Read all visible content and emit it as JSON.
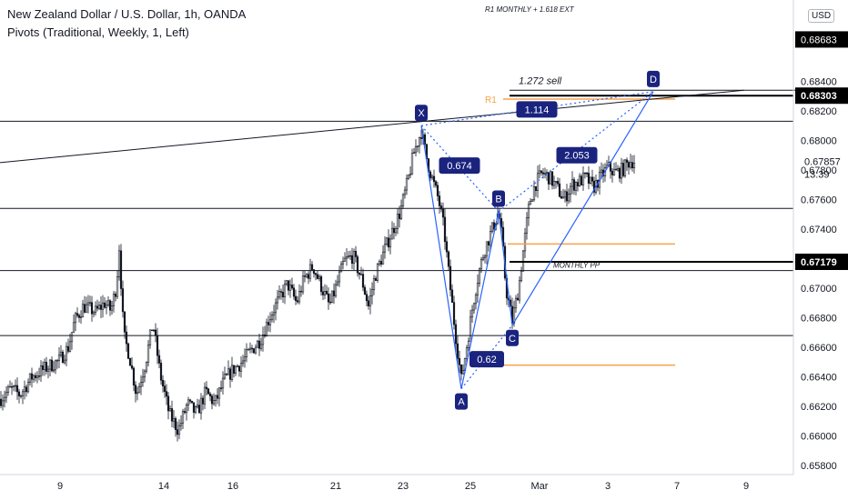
{
  "header": {
    "symbol_title": "New Zealand Dollar / U.S. Dollar, 1h, OANDA",
    "indicator": "Pivots (Traditional, Weekly, 1, Left)"
  },
  "currency_badge": "USD",
  "chart_data": {
    "type": "candlestick",
    "title": "New Zealand Dollar / U.S. Dollar, 1h, OANDA",
    "x_tick_labels": [
      {
        "label": "9",
        "x": 66
      },
      {
        "label": "14",
        "x": 180
      },
      {
        "label": "16",
        "x": 256
      },
      {
        "label": "21",
        "x": 369
      },
      {
        "label": "23",
        "x": 443
      },
      {
        "label": "25",
        "x": 517
      },
      {
        "label": "Mar",
        "x": 593
      },
      {
        "label": "3",
        "x": 668
      },
      {
        "label": "7",
        "x": 744
      },
      {
        "label": "9",
        "x": 820
      }
    ],
    "x_domain": [
      0,
      870
    ],
    "ylim": [
      0.6574,
      0.6895
    ],
    "y_ticks": [
      "0.65800",
      "0.66000",
      "0.66200",
      "0.66400",
      "0.66600",
      "0.66800",
      "0.67000",
      "0.67400",
      "0.67600",
      "0.67800",
      "0.68000",
      "0.68200",
      "0.68400"
    ],
    "price_tags": [
      {
        "label": "0.68303",
        "y": 0.68303
      },
      {
        "label": "0.67179",
        "y": 0.67179
      },
      {
        "label": "0.67857",
        "y": 0.67857,
        "style": "plain"
      },
      {
        "label": "0.68683",
        "y": 0.68683,
        "style": "partial"
      }
    ],
    "countdown": "13:39",
    "pivot_lines": [
      0.6813,
      0.6754,
      0.6712,
      0.6668
    ],
    "tag_lines": [
      0.68303,
      0.67179
    ],
    "orange_lines": [
      {
        "y": 0.6828,
        "x1": 553,
        "x2": 742,
        "label": "R1"
      },
      {
        "y": 0.673,
        "x1": 558,
        "x2": 742
      },
      {
        "y": 0.6648,
        "x1": 553,
        "x2": 742
      }
    ],
    "trend_lines": [
      {
        "x1": 0,
        "y1": 0.6785,
        "x2": 818,
        "y2": 0.6834
      },
      {
        "x1": 560,
        "y1": 0.6834,
        "x2": 932,
        "y2": 0.6834
      }
    ],
    "harmonic_points": [
      {
        "label": "X",
        "x": 463,
        "y": 0.681
      },
      {
        "label": "A",
        "x": 507,
        "y": 0.6632
      },
      {
        "label": "B",
        "x": 548,
        "y": 0.6752
      },
      {
        "label": "C",
        "x": 563,
        "y": 0.6675
      },
      {
        "label": "D",
        "x": 718,
        "y": 0.6833
      }
    ],
    "harmonic_ratios": [
      {
        "label": "1.114",
        "x": 590,
        "y": 0.6821
      },
      {
        "label": "0.674",
        "x": 505,
        "y": 0.6783
      },
      {
        "label": "2.053",
        "x": 634,
        "y": 0.679
      },
      {
        "label": "0.62",
        "x": 535,
        "y": 0.6652
      }
    ],
    "annotations": [
      {
        "text": "1.272 sell",
        "x": 570,
        "y": 0.6838
      },
      {
        "text": "MONTHLY PP",
        "x": 608,
        "y": 0.6714
      },
      {
        "text": "R1 MONTHLY + 1.618 EXT",
        "x": 533,
        "y": 0.6887
      }
    ],
    "colors": {
      "candle": "#131722",
      "pattern": "#2962ff",
      "label": "#1a237e",
      "orange": "#f7a24a",
      "tag": "#000000"
    },
    "price_path": [
      [
        0,
        0.6625
      ],
      [
        12,
        0.6632
      ],
      [
        22,
        0.6628
      ],
      [
        35,
        0.664
      ],
      [
        50,
        0.6646
      ],
      [
        65,
        0.6651
      ],
      [
        75,
        0.666
      ],
      [
        82,
        0.6678
      ],
      [
        92,
        0.6688
      ],
      [
        105,
        0.6684
      ],
      [
        115,
        0.669
      ],
      [
        122,
        0.6685
      ],
      [
        128,
        0.6702
      ],
      [
        131,
        0.6728
      ],
      [
        136,
        0.6668
      ],
      [
        142,
        0.6655
      ],
      [
        150,
        0.6628
      ],
      [
        160,
        0.665
      ],
      [
        168,
        0.6677
      ],
      [
        176,
        0.6642
      ],
      [
        186,
        0.6615
      ],
      [
        196,
        0.6604
      ],
      [
        206,
        0.6622
      ],
      [
        216,
        0.6615
      ],
      [
        226,
        0.663
      ],
      [
        236,
        0.6622
      ],
      [
        246,
        0.6637
      ],
      [
        256,
        0.6645
      ],
      [
        266,
        0.665
      ],
      [
        276,
        0.6658
      ],
      [
        286,
        0.6665
      ],
      [
        296,
        0.668
      ],
      [
        306,
        0.6692
      ],
      [
        316,
        0.6703
      ],
      [
        326,
        0.669
      ],
      [
        334,
        0.6706
      ],
      [
        344,
        0.6715
      ],
      [
        354,
        0.67
      ],
      [
        362,
        0.6688
      ],
      [
        370,
        0.6702
      ],
      [
        378,
        0.6718
      ],
      [
        388,
        0.6722
      ],
      [
        398,
        0.6705
      ],
      [
        405,
        0.6688
      ],
      [
        412,
        0.6708
      ],
      [
        422,
        0.6725
      ],
      [
        432,
        0.674
      ],
      [
        440,
        0.6752
      ],
      [
        448,
        0.6772
      ],
      [
        455,
        0.6792
      ],
      [
        463,
        0.6806
      ],
      [
        470,
        0.6785
      ],
      [
        476,
        0.6772
      ],
      [
        482,
        0.676
      ],
      [
        488,
        0.674
      ],
      [
        494,
        0.6705
      ],
      [
        500,
        0.6672
      ],
      [
        507,
        0.6638
      ],
      [
        514,
        0.6665
      ],
      [
        520,
        0.669
      ],
      [
        526,
        0.671
      ],
      [
        532,
        0.6725
      ],
      [
        538,
        0.6735
      ],
      [
        544,
        0.6745
      ],
      [
        548,
        0.6752
      ],
      [
        552,
        0.6732
      ],
      [
        556,
        0.67
      ],
      [
        563,
        0.6678
      ],
      [
        570,
        0.67
      ],
      [
        576,
        0.673
      ],
      [
        582,
        0.6758
      ],
      [
        588,
        0.677
      ],
      [
        596,
        0.6778
      ],
      [
        604,
        0.6775
      ],
      [
        612,
        0.6768
      ],
      [
        620,
        0.676
      ],
      [
        628,
        0.677
      ],
      [
        636,
        0.6772
      ],
      [
        644,
        0.6775
      ],
      [
        652,
        0.6768
      ],
      [
        660,
        0.6775
      ],
      [
        668,
        0.6782
      ],
      [
        676,
        0.6778
      ],
      [
        684,
        0.678
      ],
      [
        692,
        0.6786
      ],
      [
        697,
        0.6786
      ]
    ]
  }
}
